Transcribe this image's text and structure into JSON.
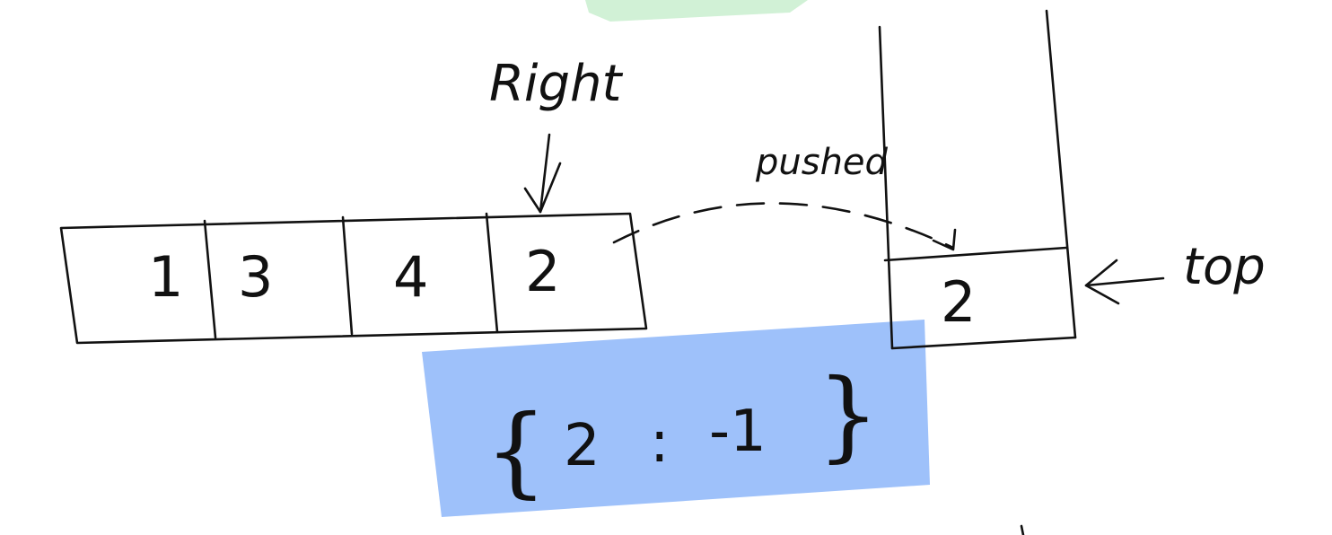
{
  "array": {
    "cells": [
      "1",
      "3",
      "4",
      "2"
    ]
  },
  "labels": {
    "pointer": "Right",
    "action": "pushed",
    "stack_top": "top"
  },
  "stack": {
    "items": [
      "2"
    ]
  },
  "map": {
    "open_brace": "{",
    "key": "2",
    "separator": ":",
    "value": "-1",
    "close_brace": "}"
  },
  "colors": {
    "highlight_blue": "#9ec1fa",
    "highlight_green": "#c9efcf",
    "ink": "#111111"
  }
}
